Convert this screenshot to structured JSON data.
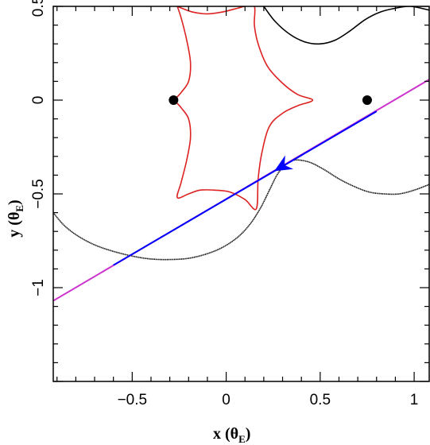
{
  "chart_data": {
    "type": "line",
    "title": "",
    "xlabel": {
      "main": "x (θ",
      "sub": "E",
      "close": ")"
    },
    "ylabel": {
      "main": "y (θ",
      "sub": "E",
      "close": ")"
    },
    "xlim": [
      -0.92,
      1.08
    ],
    "ylim": [
      -1.5,
      0.5
    ],
    "xticks": [
      {
        "value": -0.5,
        "label": "−0.5"
      },
      {
        "value": 0,
        "label": "0"
      },
      {
        "value": 0.5,
        "label": "0.5"
      },
      {
        "value": 1,
        "label": "1"
      }
    ],
    "yticks": [
      {
        "value": 0.5,
        "label": "0.5"
      },
      {
        "value": 0,
        "label": "0"
      },
      {
        "value": -0.5,
        "label": "−0.5"
      },
      {
        "value": -1,
        "label": "−1"
      }
    ],
    "lenses": [
      {
        "x": -0.28,
        "y": 0
      },
      {
        "x": 0.75,
        "y": 0
      }
    ],
    "series": [
      {
        "kind": "critical-curve-upper",
        "color": "#000000",
        "points": [
          [
            0.2,
            0.5
          ],
          [
            0.26,
            0.42
          ],
          [
            0.34,
            0.35
          ],
          [
            0.42,
            0.31
          ],
          [
            0.5,
            0.3
          ],
          [
            0.58,
            0.32
          ],
          [
            0.66,
            0.37
          ],
          [
            0.74,
            0.43
          ],
          [
            0.82,
            0.47
          ],
          [
            0.9,
            0.49
          ],
          [
            0.98,
            0.5
          ],
          [
            1.08,
            0.48
          ]
        ]
      },
      {
        "kind": "critical-curve-lower",
        "color": "#000000",
        "points": [
          [
            -0.92,
            -0.6
          ],
          [
            -0.86,
            -0.67
          ],
          [
            -0.78,
            -0.73
          ],
          [
            -0.68,
            -0.78
          ],
          [
            -0.55,
            -0.82
          ],
          [
            -0.42,
            -0.845
          ],
          [
            -0.3,
            -0.85
          ],
          [
            -0.18,
            -0.84
          ],
          [
            -0.05,
            -0.8
          ],
          [
            0.05,
            -0.74
          ],
          [
            0.12,
            -0.67
          ],
          [
            0.18,
            -0.58
          ],
          [
            0.23,
            -0.48
          ],
          [
            0.27,
            -0.4
          ],
          [
            0.31,
            -0.35
          ],
          [
            0.36,
            -0.32
          ],
          [
            0.44,
            -0.33
          ],
          [
            0.52,
            -0.37
          ],
          [
            0.6,
            -0.42
          ],
          [
            0.68,
            -0.46
          ],
          [
            0.76,
            -0.49
          ],
          [
            0.84,
            -0.5
          ],
          [
            0.92,
            -0.5
          ],
          [
            1.0,
            -0.48
          ],
          [
            1.08,
            -0.45
          ]
        ]
      },
      {
        "kind": "caustic",
        "color": "#dd2222",
        "points": [
          [
            -0.26,
            0.5
          ],
          [
            -0.18,
            0.47
          ],
          [
            -0.1,
            0.46
          ],
          [
            -0.02,
            0.47
          ],
          [
            0.06,
            0.49
          ],
          [
            0.1,
            0.5
          ],
          [
            0.15,
            0.5
          ],
          [
            0.15,
            0.4
          ],
          [
            0.17,
            0.3
          ],
          [
            0.22,
            0.18
          ],
          [
            0.3,
            0.09
          ],
          [
            0.38,
            0.03
          ],
          [
            0.46,
            0.0
          ],
          [
            0.38,
            -0.03
          ],
          [
            0.3,
            -0.07
          ],
          [
            0.23,
            -0.14
          ],
          [
            0.19,
            -0.28
          ],
          [
            0.17,
            -0.42
          ],
          [
            0.16,
            -0.58
          ],
          [
            0.1,
            -0.53
          ],
          [
            0.02,
            -0.49
          ],
          [
            -0.06,
            -0.48
          ],
          [
            -0.14,
            -0.48
          ],
          [
            -0.2,
            -0.5
          ],
          [
            -0.26,
            -0.52
          ],
          [
            -0.24,
            -0.44
          ],
          [
            -0.21,
            -0.32
          ],
          [
            -0.19,
            -0.2
          ],
          [
            -0.2,
            -0.1
          ],
          [
            -0.24,
            -0.04
          ],
          [
            -0.27,
            0.0
          ],
          [
            -0.24,
            0.04
          ],
          [
            -0.2,
            0.1
          ],
          [
            -0.19,
            0.2
          ],
          [
            -0.21,
            0.32
          ],
          [
            -0.24,
            0.44
          ],
          [
            -0.26,
            0.5
          ]
        ]
      },
      {
        "kind": "source-trajectory-outer",
        "color": "#cc33cc",
        "points": [
          [
            -0.92,
            -1.07
          ],
          [
            1.08,
            0.11
          ]
        ]
      },
      {
        "kind": "source-trajectory-inner",
        "color": "#0000ff",
        "points": [
          [
            -0.6,
            -0.88
          ],
          [
            0.8,
            -0.06
          ]
        ]
      }
    ],
    "arrow": {
      "x": 0.27,
      "y": -0.37,
      "direction": [
        -1,
        -0.59
      ],
      "color": "#0000ff"
    }
  }
}
